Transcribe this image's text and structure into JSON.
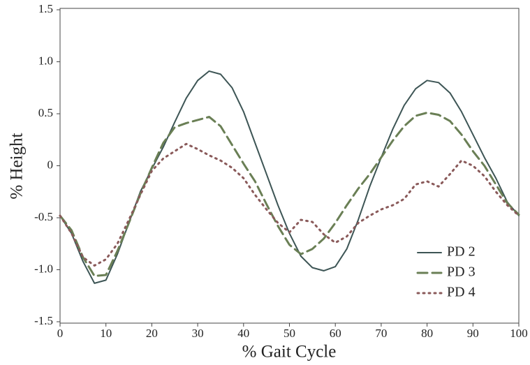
{
  "chart_data": {
    "type": "line",
    "xlabel": "% Gait Cycle",
    "ylabel": "% Height",
    "x": [
      0,
      2.5,
      5,
      7.5,
      10,
      12.5,
      15,
      17.5,
      20,
      22.5,
      25,
      27.5,
      30,
      32.5,
      35,
      37.5,
      40,
      42.5,
      45,
      47.5,
      50,
      52.5,
      55,
      57.5,
      60,
      62.5,
      65,
      67.5,
      70,
      72.5,
      75,
      77.5,
      80,
      82.5,
      85,
      87.5,
      90,
      92.5,
      95,
      97.5,
      100
    ],
    "series": [
      {
        "name": "PD 2",
        "color": "#3d5555",
        "linestyle": "solid",
        "values": [
          -0.48,
          -0.65,
          -0.92,
          -1.13,
          -1.1,
          -0.85,
          -0.55,
          -0.25,
          -0.03,
          0.18,
          0.42,
          0.65,
          0.82,
          0.91,
          0.88,
          0.75,
          0.52,
          0.22,
          -0.08,
          -0.38,
          -0.65,
          -0.87,
          -0.98,
          -1.01,
          -0.97,
          -0.8,
          -0.52,
          -0.2,
          0.08,
          0.35,
          0.58,
          0.74,
          0.82,
          0.8,
          0.7,
          0.52,
          0.3,
          0.08,
          -0.12,
          -0.35,
          -0.48
        ]
      },
      {
        "name": "PD 3",
        "color": "#6a7f55",
        "linestyle": "dashed",
        "values": [
          -0.48,
          -0.62,
          -0.88,
          -1.06,
          -1.05,
          -0.82,
          -0.55,
          -0.27,
          -0.02,
          0.22,
          0.37,
          0.41,
          0.44,
          0.47,
          0.38,
          0.2,
          0.02,
          -0.15,
          -0.37,
          -0.58,
          -0.76,
          -0.85,
          -0.8,
          -0.7,
          -0.55,
          -0.38,
          -0.22,
          -0.08,
          0.08,
          0.24,
          0.38,
          0.48,
          0.51,
          0.49,
          0.43,
          0.3,
          0.14,
          0.0,
          -0.18,
          -0.36,
          -0.47
        ]
      },
      {
        "name": "PD 4",
        "color": "#8a5a5a",
        "linestyle": "dotted",
        "values": [
          -0.48,
          -0.65,
          -0.88,
          -0.96,
          -0.9,
          -0.75,
          -0.52,
          -0.28,
          -0.05,
          0.07,
          0.14,
          0.21,
          0.16,
          0.1,
          0.05,
          -0.02,
          -0.12,
          -0.28,
          -0.42,
          -0.55,
          -0.64,
          -0.52,
          -0.54,
          -0.66,
          -0.74,
          -0.68,
          -0.55,
          -0.48,
          -0.42,
          -0.38,
          -0.32,
          -0.18,
          -0.15,
          -0.2,
          -0.08,
          0.05,
          0.0,
          -0.1,
          -0.25,
          -0.38,
          -0.48
        ]
      }
    ],
    "xlim": [
      0,
      100
    ],
    "xticks": [
      0,
      10,
      20,
      30,
      40,
      50,
      60,
      70,
      80,
      90,
      100
    ],
    "ylim": [
      -1.5,
      1.5
    ],
    "yticks": [
      -1.5,
      {
        "value": -1,
        "label": "-1.0"
      },
      -0.5,
      0,
      0.5,
      {
        "value": 1,
        "label": "1.0"
      },
      1.5
    ],
    "grid": false,
    "legend": "lower right"
  }
}
